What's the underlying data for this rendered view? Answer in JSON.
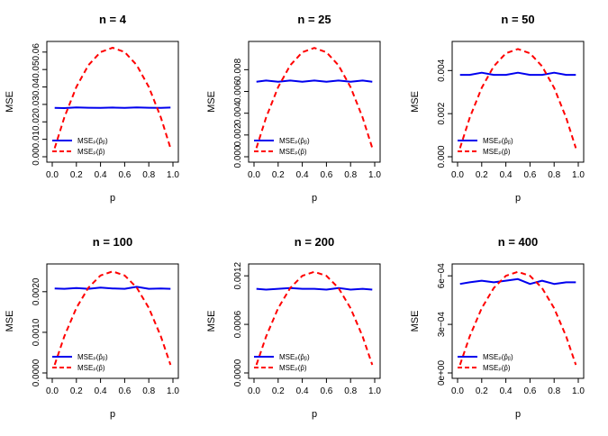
{
  "figure": {
    "colors": {
      "mse_b": "#0000ee",
      "mse_hat": "#ff0000",
      "frame": "#000000"
    },
    "legend": {
      "b_label": "MSEₚ(p̂ᵦ)",
      "hat_label": "MSEₚ(p̂)",
      "placement": "bottom-left"
    }
  },
  "chart_data": [
    {
      "type": "line",
      "title": "n =  4",
      "xlabel": "p",
      "ylabel": "MSE",
      "xlim": [
        0,
        1
      ],
      "ylim": [
        0,
        0.063
      ],
      "xticks": [
        "0.0",
        "0.2",
        "0.4",
        "0.6",
        "0.8",
        "1.0"
      ],
      "yticks": [
        "0.00",
        "0.01",
        "0.02",
        "0.03",
        "0.04",
        "0.05",
        "0.06"
      ],
      "x": [
        0.02,
        0.1,
        0.2,
        0.3,
        0.4,
        0.5,
        0.6,
        0.7,
        0.8,
        0.9,
        0.98
      ],
      "series": [
        {
          "name": "MSEp(p̂B)",
          "values": [
            0.028,
            0.0279,
            0.0283,
            0.0281,
            0.028,
            0.0282,
            0.028,
            0.0283,
            0.0281,
            0.028,
            0.0282
          ]
        },
        {
          "name": "MSEp(p̂)",
          "values": [
            0.0049,
            0.0225,
            0.04,
            0.0525,
            0.06,
            0.0625,
            0.06,
            0.0525,
            0.04,
            0.0225,
            0.0049
          ]
        }
      ]
    },
    {
      "type": "line",
      "title": "n =  25",
      "xlabel": "p",
      "ylabel": "MSE",
      "xlim": [
        0,
        1
      ],
      "ylim": [
        0,
        0.0101
      ],
      "xticks": [
        "0.0",
        "0.2",
        "0.4",
        "0.6",
        "0.8",
        "1.0"
      ],
      "yticks": [
        "0.000",
        "0.002",
        "0.004",
        "0.006",
        "0.008"
      ],
      "x": [
        0.02,
        0.1,
        0.2,
        0.3,
        0.4,
        0.5,
        0.6,
        0.7,
        0.8,
        0.9,
        0.98
      ],
      "series": [
        {
          "name": "MSEp(p̂B)",
          "values": [
            0.0069,
            0.007,
            0.0069,
            0.007,
            0.0069,
            0.007,
            0.0069,
            0.007,
            0.0069,
            0.007,
            0.0069
          ]
        },
        {
          "name": "MSEp(p̂)",
          "values": [
            0.0008,
            0.0036,
            0.0064,
            0.0084,
            0.0096,
            0.01,
            0.0096,
            0.0084,
            0.0064,
            0.0036,
            0.0008
          ]
        }
      ]
    },
    {
      "type": "line",
      "title": "n =  50",
      "xlabel": "p",
      "ylabel": "MSE",
      "xlim": [
        0,
        1
      ],
      "ylim": [
        0,
        0.0051
      ],
      "xticks": [
        "0.0",
        "0.2",
        "0.4",
        "0.6",
        "0.8",
        "1.0"
      ],
      "yticks": [
        "0.000",
        "0.002",
        "0.004"
      ],
      "x": [
        0.02,
        0.1,
        0.2,
        0.3,
        0.4,
        0.5,
        0.6,
        0.7,
        0.8,
        0.9,
        0.98
      ],
      "series": [
        {
          "name": "MSEp(p̂B)",
          "values": [
            0.0038,
            0.0038,
            0.0039,
            0.0038,
            0.0038,
            0.0039,
            0.0038,
            0.0038,
            0.0039,
            0.0038,
            0.0038
          ]
        },
        {
          "name": "MSEp(p̂)",
          "values": [
            0.0004,
            0.0018,
            0.0032,
            0.0042,
            0.0048,
            0.005,
            0.0048,
            0.0042,
            0.0032,
            0.0018,
            0.0004
          ]
        }
      ]
    },
    {
      "type": "line",
      "title": "n =  100",
      "xlabel": "p",
      "ylabel": "MSE",
      "xlim": [
        0,
        1
      ],
      "ylim": [
        0,
        0.00255
      ],
      "xticks": [
        "0.0",
        "0.2",
        "0.4",
        "0.6",
        "0.8",
        "1.0"
      ],
      "yticks": [
        "0.0000",
        "0.0010",
        "0.0020"
      ],
      "x": [
        0.02,
        0.1,
        0.2,
        0.3,
        0.4,
        0.5,
        0.6,
        0.7,
        0.8,
        0.9,
        0.98
      ],
      "series": [
        {
          "name": "MSEp(p̂B)",
          "values": [
            0.00208,
            0.00207,
            0.00209,
            0.00207,
            0.0021,
            0.00208,
            0.00207,
            0.00212,
            0.00207,
            0.00208,
            0.00207
          ]
        },
        {
          "name": "MSEp(p̂)",
          "values": [
            0.0002,
            0.0009,
            0.0016,
            0.0021,
            0.0024,
            0.0025,
            0.0024,
            0.0021,
            0.0016,
            0.0009,
            0.0002
          ]
        }
      ]
    },
    {
      "type": "line",
      "title": "n =  200",
      "xlabel": "p",
      "ylabel": "MSE",
      "xlim": [
        0,
        1
      ],
      "ylim": [
        0,
        0.00128
      ],
      "xticks": [
        "0.0",
        "0.2",
        "0.4",
        "0.6",
        "0.8",
        "1.0"
      ],
      "yticks": [
        "0.0000",
        "0.0006",
        "0.0012"
      ],
      "x": [
        0.02,
        0.1,
        0.2,
        0.3,
        0.4,
        0.5,
        0.6,
        0.7,
        0.8,
        0.9,
        0.98
      ],
      "series": [
        {
          "name": "MSEp(p̂B)",
          "values": [
            0.00104,
            0.00103,
            0.00104,
            0.00105,
            0.00104,
            0.00104,
            0.00103,
            0.00105,
            0.00103,
            0.00104,
            0.00103
          ]
        },
        {
          "name": "MSEp(p̂)",
          "values": [
            0.0001,
            0.00045,
            0.0008,
            0.00105,
            0.0012,
            0.00125,
            0.0012,
            0.00105,
            0.0008,
            0.00045,
            0.0001
          ]
        }
      ]
    },
    {
      "type": "line",
      "title": "n =  400",
      "xlabel": "p",
      "ylabel": "MSE",
      "xlim": [
        0,
        1
      ],
      "ylim": [
        0,
        0.00064
      ],
      "xticks": [
        "0.0",
        "0.2",
        "0.4",
        "0.6",
        "0.8",
        "1.0"
      ],
      "yticks": [
        "0e+00",
        "3e−04",
        "6e−04"
      ],
      "x": [
        0.02,
        0.1,
        0.2,
        0.3,
        0.4,
        0.5,
        0.6,
        0.7,
        0.8,
        0.9,
        0.98
      ],
      "series": [
        {
          "name": "MSEp(p̂B)",
          "values": [
            0.00055,
            0.00056,
            0.00057,
            0.00056,
            0.00057,
            0.00058,
            0.00055,
            0.00057,
            0.00055,
            0.00056,
            0.00056
          ]
        },
        {
          "name": "MSEp(p̂)",
          "values": [
            5e-05,
            0.000225,
            0.0004,
            0.000525,
            0.0006,
            0.000625,
            0.0006,
            0.000525,
            0.0004,
            0.000225,
            5e-05
          ]
        }
      ]
    }
  ]
}
